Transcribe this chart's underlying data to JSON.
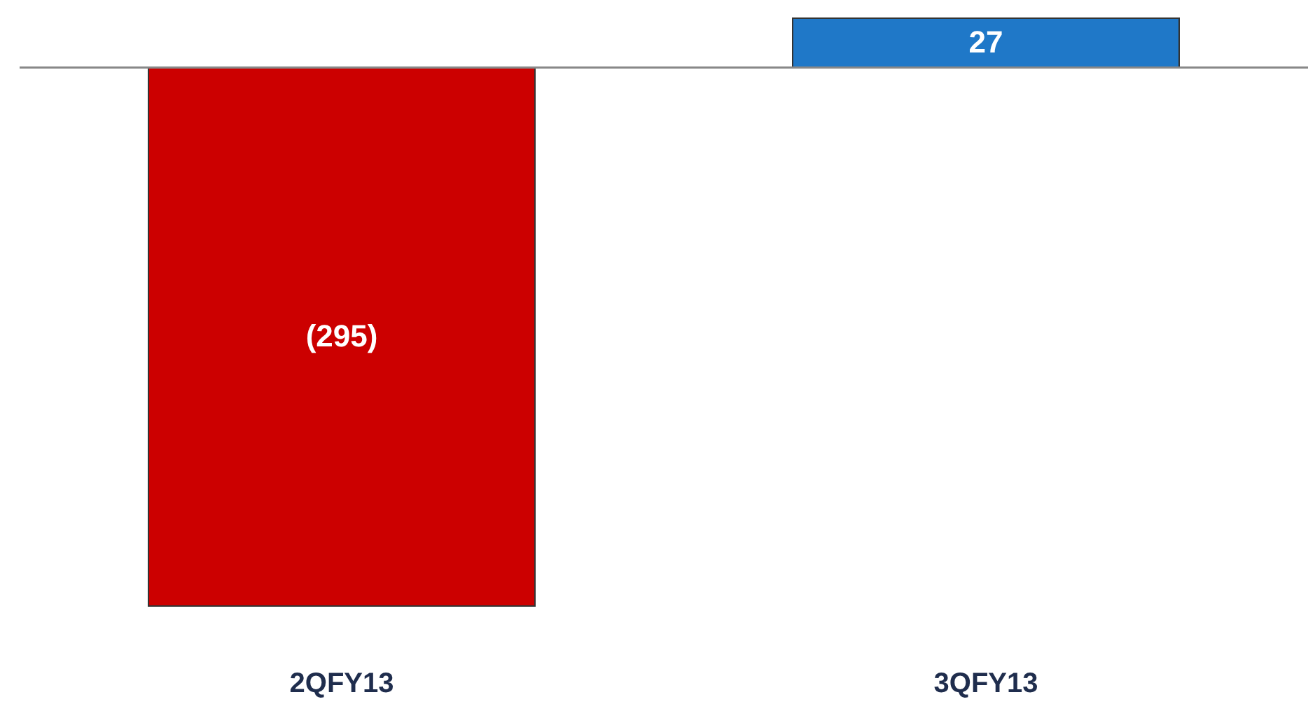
{
  "chart_data": {
    "type": "bar",
    "categories": [
      "2QFY13",
      "3QFY13"
    ],
    "values": [
      -295,
      27
    ],
    "colors": [
      "#cc0000",
      "#1f78c8"
    ],
    "value_labels": [
      "(295)",
      "27"
    ]
  }
}
